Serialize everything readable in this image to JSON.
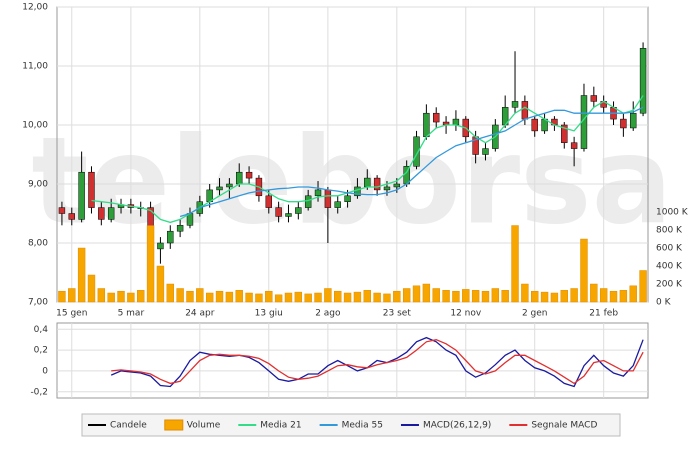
{
  "watermark": "teleborsa",
  "chart_data": [
    {
      "type": "candlestick",
      "categories": [
        null,
        "15 gen",
        null,
        null,
        null,
        null,
        null,
        "5 mar",
        null,
        null,
        null,
        null,
        null,
        null,
        "24 apr",
        null,
        null,
        null,
        null,
        null,
        null,
        "13 giu",
        null,
        null,
        null,
        null,
        null,
        "2 ago",
        null,
        null,
        null,
        null,
        null,
        null,
        "23 set",
        null,
        null,
        null,
        null,
        null,
        null,
        "12 nov",
        null,
        null,
        null,
        null,
        null,
        null,
        "2 gen",
        null,
        null,
        null,
        null,
        null,
        null,
        "21 feb",
        null,
        null,
        null,
        null
      ],
      "series": [
        {
          "name": "Candele",
          "type": "candlestick",
          "color": "#000000",
          "up_color": "#2e9e3a",
          "down_color": "#d03030",
          "values": [
            [
              8.6,
              8.7,
              8.3,
              8.5
            ],
            [
              8.5,
              8.6,
              8.3,
              8.4
            ],
            [
              8.4,
              9.55,
              8.35,
              9.2
            ],
            [
              9.2,
              9.3,
              8.5,
              8.6
            ],
            [
              8.6,
              8.7,
              8.3,
              8.4
            ],
            [
              8.4,
              8.75,
              8.35,
              8.6
            ],
            [
              8.6,
              8.75,
              8.5,
              8.65
            ],
            [
              8.65,
              8.75,
              8.5,
              8.6
            ],
            [
              8.6,
              8.7,
              8.45,
              8.6
            ],
            [
              8.6,
              8.7,
              7.75,
              7.9
            ],
            [
              7.9,
              8.1,
              7.65,
              8.0
            ],
            [
              8.0,
              8.3,
              7.9,
              8.2
            ],
            [
              8.2,
              8.4,
              8.1,
              8.3
            ],
            [
              8.3,
              8.6,
              8.25,
              8.5
            ],
            [
              8.5,
              8.8,
              8.45,
              8.7
            ],
            [
              8.7,
              9.0,
              8.6,
              8.9
            ],
            [
              8.9,
              9.1,
              8.8,
              8.95
            ],
            [
              8.95,
              9.1,
              8.75,
              9.0
            ],
            [
              9.0,
              9.35,
              8.95,
              9.2
            ],
            [
              9.2,
              9.3,
              9.0,
              9.1
            ],
            [
              9.1,
              9.15,
              8.7,
              8.8
            ],
            [
              8.8,
              8.9,
              8.5,
              8.6
            ],
            [
              8.6,
              8.7,
              8.35,
              8.45
            ],
            [
              8.45,
              8.65,
              8.35,
              8.5
            ],
            [
              8.5,
              8.7,
              8.4,
              8.6
            ],
            [
              8.6,
              8.9,
              8.55,
              8.8
            ],
            [
              8.8,
              9.05,
              8.7,
              8.9
            ],
            [
              8.9,
              8.95,
              8.0,
              8.6
            ],
            [
              8.6,
              8.8,
              8.5,
              8.7
            ],
            [
              8.7,
              8.9,
              8.6,
              8.8
            ],
            [
              8.8,
              9.1,
              8.75,
              8.95
            ],
            [
              8.95,
              9.25,
              8.9,
              9.1
            ],
            [
              9.1,
              9.15,
              8.8,
              8.9
            ],
            [
              8.9,
              9.05,
              8.8,
              8.95
            ],
            [
              8.95,
              9.1,
              8.85,
              9.0
            ],
            [
              9.0,
              9.4,
              8.95,
              9.3
            ],
            [
              9.3,
              9.9,
              9.25,
              9.8
            ],
            [
              9.8,
              10.35,
              9.75,
              10.2
            ],
            [
              10.2,
              10.3,
              9.95,
              10.05
            ],
            [
              10.05,
              10.15,
              9.85,
              10.0
            ],
            [
              10.0,
              10.25,
              9.9,
              10.1
            ],
            [
              10.1,
              10.15,
              9.7,
              9.8
            ],
            [
              9.8,
              9.9,
              9.35,
              9.5
            ],
            [
              9.5,
              9.7,
              9.4,
              9.6
            ],
            [
              9.6,
              10.1,
              9.55,
              10.0
            ],
            [
              10.0,
              10.5,
              9.95,
              10.3
            ],
            [
              10.3,
              11.25,
              10.2,
              10.4
            ],
            [
              10.4,
              10.5,
              10.0,
              10.1
            ],
            [
              10.1,
              10.15,
              9.8,
              9.9
            ],
            [
              9.9,
              10.2,
              9.85,
              10.1
            ],
            [
              10.1,
              10.15,
              9.9,
              10.0
            ],
            [
              10.0,
              10.05,
              9.6,
              9.7
            ],
            [
              9.7,
              9.8,
              9.3,
              9.6
            ],
            [
              9.6,
              10.7,
              9.55,
              10.5
            ],
            [
              10.5,
              10.65,
              10.3,
              10.4
            ],
            [
              10.4,
              10.5,
              10.2,
              10.3
            ],
            [
              10.3,
              10.4,
              10.0,
              10.1
            ],
            [
              10.1,
              10.2,
              9.8,
              9.95
            ],
            [
              9.95,
              10.4,
              9.9,
              10.2
            ],
            [
              10.2,
              11.4,
              10.15,
              11.3
            ]
          ]
        },
        {
          "name": "Volume",
          "type": "bar",
          "axis": "y2",
          "color": "#f7a600",
          "values": [
            120,
            150,
            600,
            300,
            150,
            100,
            120,
            100,
            130,
            850,
            400,
            200,
            150,
            120,
            150,
            100,
            120,
            110,
            130,
            100,
            90,
            120,
            80,
            100,
            110,
            90,
            100,
            150,
            120,
            100,
            110,
            130,
            100,
            90,
            120,
            150,
            180,
            200,
            150,
            130,
            120,
            140,
            130,
            120,
            150,
            130,
            850,
            200,
            120,
            110,
            100,
            130,
            150,
            700,
            200,
            150,
            120,
            130,
            180,
            350
          ]
        },
        {
          "name": "Media 21",
          "type": "line",
          "color": "#33dd88",
          "values": [
            null,
            null,
            null,
            8.72,
            8.7,
            8.68,
            8.65,
            8.62,
            8.6,
            8.55,
            8.4,
            8.35,
            8.4,
            8.5,
            8.6,
            8.7,
            8.8,
            8.9,
            9.0,
            9.0,
            8.95,
            8.85,
            8.75,
            8.7,
            8.7,
            8.72,
            8.78,
            8.8,
            8.8,
            8.85,
            8.9,
            8.95,
            8.95,
            9.0,
            9.05,
            9.2,
            9.5,
            9.8,
            9.95,
            10.0,
            10.0,
            9.95,
            9.8,
            9.7,
            9.8,
            10.0,
            10.2,
            10.3,
            10.2,
            10.1,
            10.0,
            9.95,
            9.9,
            10.1,
            10.3,
            10.4,
            10.3,
            10.2,
            10.25,
            10.5
          ]
        },
        {
          "name": "Media 55",
          "type": "line",
          "color": "#3399dd",
          "values": [
            null,
            null,
            null,
            null,
            null,
            null,
            null,
            null,
            null,
            null,
            null,
            null,
            8.45,
            8.5,
            8.6,
            8.65,
            8.7,
            8.75,
            8.8,
            8.85,
            8.88,
            8.9,
            8.92,
            8.93,
            8.95,
            8.95,
            8.93,
            8.9,
            8.88,
            8.85,
            8.83,
            8.82,
            8.82,
            8.85,
            8.9,
            9.0,
            9.15,
            9.3,
            9.45,
            9.55,
            9.65,
            9.7,
            9.75,
            9.8,
            9.85,
            9.9,
            10.0,
            10.1,
            10.15,
            10.2,
            10.25,
            10.25,
            10.2,
            10.2,
            10.2,
            10.2,
            10.2,
            10.2,
            10.22,
            10.3
          ]
        }
      ],
      "ylim": [
        7,
        12
      ],
      "yticks": [
        {
          "value": 7,
          "label": "7,00"
        },
        {
          "value": 8,
          "label": "8,00"
        },
        {
          "value": 9,
          "label": "9,00"
        },
        {
          "value": 10,
          "label": "10,00"
        },
        {
          "value": 11,
          "label": "11,00"
        },
        {
          "value": 12,
          "label": "12,00"
        }
      ],
      "y2lim": [
        0,
        3280
      ],
      "y2ticks": [
        {
          "value": 0,
          "label": "0 K"
        },
        {
          "value": 200,
          "label": "200 K"
        },
        {
          "value": 400,
          "label": "400 K"
        },
        {
          "value": 600,
          "label": "600 K"
        },
        {
          "value": 800,
          "label": "800 K"
        },
        {
          "value": 1000,
          "label": "1000 K"
        }
      ],
      "grid": true
    },
    {
      "type": "line",
      "series": [
        {
          "name": "MACD(26,12,9)",
          "color": "#1a1aa0",
          "values": [
            null,
            null,
            null,
            null,
            null,
            -0.04,
            0.0,
            -0.01,
            -0.02,
            -0.05,
            -0.14,
            -0.15,
            -0.05,
            0.1,
            0.18,
            0.16,
            0.15,
            0.14,
            0.15,
            0.13,
            0.08,
            0.0,
            -0.08,
            -0.1,
            -0.08,
            -0.03,
            -0.03,
            0.05,
            0.1,
            0.05,
            0.0,
            0.03,
            0.1,
            0.08,
            0.12,
            0.18,
            0.28,
            0.32,
            0.28,
            0.2,
            0.15,
            0.0,
            -0.06,
            -0.02,
            0.06,
            0.15,
            0.2,
            0.1,
            0.03,
            0.0,
            -0.05,
            -0.12,
            -0.15,
            0.05,
            0.15,
            0.05,
            -0.02,
            -0.05,
            0.05,
            0.3
          ]
        },
        {
          "name": "Segnale MACD",
          "color": "#e03030",
          "values": [
            null,
            null,
            null,
            null,
            null,
            0.0,
            0.01,
            0.0,
            -0.01,
            -0.03,
            -0.08,
            -0.12,
            -0.1,
            0.0,
            0.1,
            0.15,
            0.16,
            0.15,
            0.15,
            0.14,
            0.12,
            0.07,
            0.0,
            -0.06,
            -0.08,
            -0.07,
            -0.05,
            0.0,
            0.05,
            0.06,
            0.04,
            0.03,
            0.06,
            0.08,
            0.1,
            0.13,
            0.2,
            0.28,
            0.3,
            0.26,
            0.2,
            0.1,
            0.0,
            -0.03,
            0.0,
            0.08,
            0.15,
            0.15,
            0.1,
            0.05,
            0.0,
            -0.06,
            -0.12,
            -0.05,
            0.08,
            0.1,
            0.05,
            0.0,
            0.0,
            0.18
          ]
        }
      ],
      "ylim": [
        -0.26,
        0.46
      ],
      "yticks": [
        {
          "value": -0.2,
          "label": "-0,2"
        },
        0,
        {
          "value": 0.2,
          "label": "0,2"
        },
        {
          "value": 0.4,
          "label": "0,4"
        }
      ],
      "grid": true
    }
  ]
}
